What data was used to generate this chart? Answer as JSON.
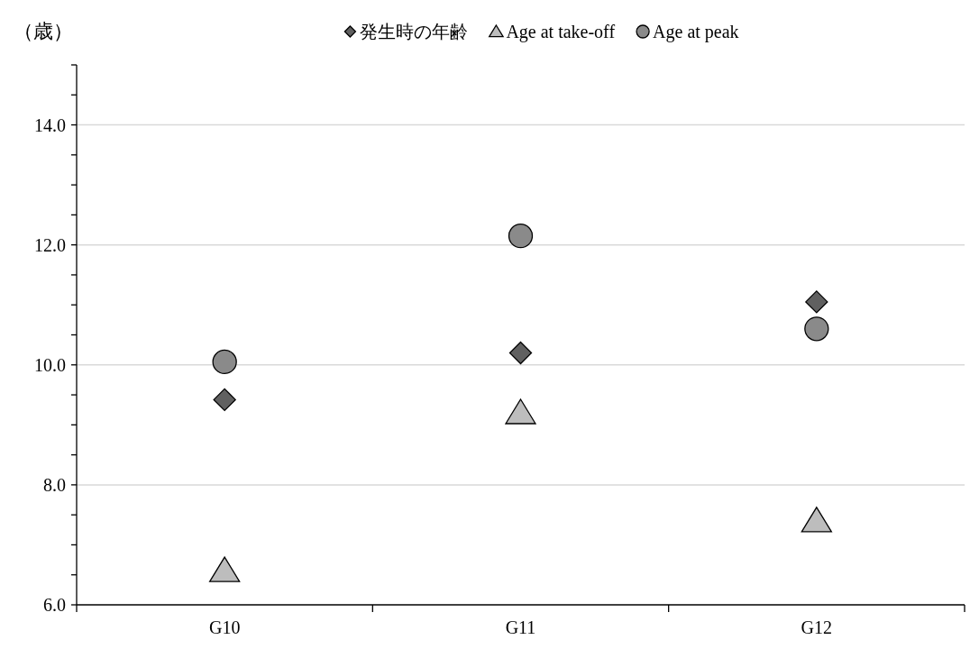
{
  "chart_data": {
    "type": "scatter",
    "ylabel": "（歳）",
    "categories": [
      "G10",
      "G11",
      "G12"
    ],
    "series": [
      {
        "name": "発生時の年齢",
        "color": "#606060",
        "marker": "diamond",
        "values": [
          9.42,
          10.2,
          11.05
        ]
      },
      {
        "name": "Age at take-off",
        "color": "#bdbdbd",
        "marker": "triangle",
        "values": [
          6.57,
          9.2,
          7.4
        ]
      },
      {
        "name": "Age at peak",
        "color": "#8a8a8a",
        "marker": "circle",
        "values": [
          10.05,
          12.15,
          10.6
        ]
      }
    ],
    "ylim": [
      6,
      15
    ],
    "yticks": [
      {
        "value": 6,
        "label": "6.0"
      },
      {
        "value": 6.5,
        "label": null
      },
      {
        "value": 7,
        "label": null
      },
      {
        "value": 7.5,
        "label": null
      },
      {
        "value": 8,
        "label": "8.0"
      },
      {
        "value": 8.5,
        "label": null
      },
      {
        "value": 9,
        "label": null
      },
      {
        "value": 9.5,
        "label": null
      },
      {
        "value": 10,
        "label": "10.0"
      },
      {
        "value": 10.5,
        "label": null
      },
      {
        "value": 11,
        "label": null
      },
      {
        "value": 11.5,
        "label": null
      },
      {
        "value": 12,
        "label": "12.0"
      },
      {
        "value": 12.5,
        "label": null
      },
      {
        "value": 13,
        "label": null
      },
      {
        "value": 13.5,
        "label": null
      },
      {
        "value": 14,
        "label": "14.0"
      },
      {
        "value": 14.5,
        "label": null
      },
      {
        "value": 15,
        "label": null
      }
    ],
    "grid": "y",
    "legend": "top"
  }
}
